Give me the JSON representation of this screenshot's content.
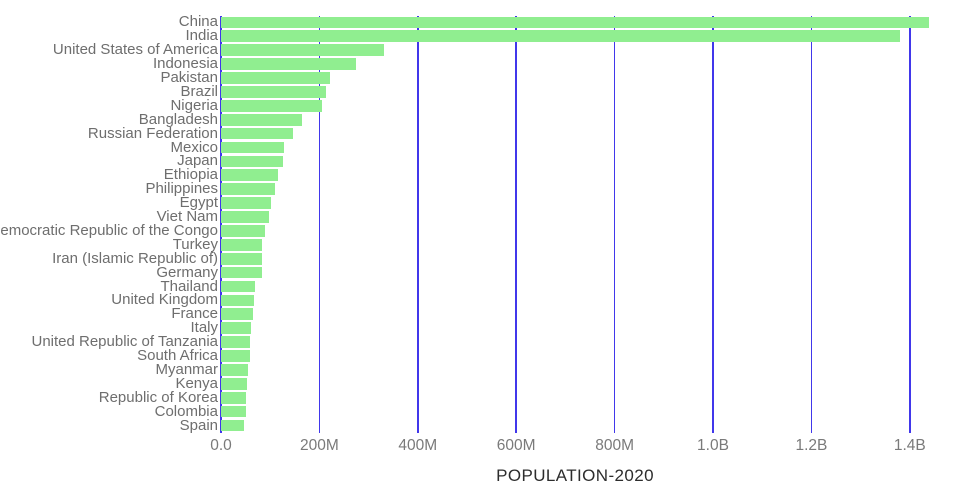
{
  "chart_data": {
    "type": "bar",
    "orientation": "horizontal",
    "title": "POPULATION-2020",
    "xlabel": "POPULATION-2020",
    "ylabel": "",
    "unit": "people",
    "grid": true,
    "legend": false,
    "xlim_millions": [
      0,
      1439.3
    ],
    "categories": [
      "China",
      "India",
      "United States of America",
      "Indonesia",
      "Pakistan",
      "Brazil",
      "Nigeria",
      "Bangladesh",
      "Russian Federation",
      "Mexico",
      "Japan",
      "Ethiopia",
      "Philippines",
      "Egypt",
      "Viet Nam",
      "Democratic Republic of the Congo",
      "Turkey",
      "Iran (Islamic Republic of)",
      "Germany",
      "Thailand",
      "United Kingdom",
      "France",
      "Italy",
      "United Republic of Tanzania",
      "South Africa",
      "Myanmar",
      "Kenya",
      "Republic of Korea",
      "Colombia",
      "Spain"
    ],
    "values_millions": [
      1439.3,
      1380.0,
      331.0,
      273.5,
      220.9,
      212.6,
      206.1,
      164.7,
      145.9,
      128.9,
      126.5,
      115.0,
      109.6,
      102.3,
      97.3,
      89.6,
      84.3,
      84.0,
      83.8,
      69.8,
      67.9,
      65.3,
      60.5,
      59.7,
      59.3,
      54.4,
      53.8,
      51.3,
      50.9,
      46.8
    ],
    "x_ticks": [
      {
        "value_millions": 0,
        "label": "0.0"
      },
      {
        "value_millions": 200,
        "label": "200M"
      },
      {
        "value_millions": 400,
        "label": "400M"
      },
      {
        "value_millions": 600,
        "label": "600M"
      },
      {
        "value_millions": 800,
        "label": "800M"
      },
      {
        "value_millions": 1000,
        "label": "1.0B"
      },
      {
        "value_millions": 1200,
        "label": "1.2B"
      },
      {
        "value_millions": 1400,
        "label": "1.4B"
      }
    ],
    "colors": {
      "bar": "#90EE90",
      "gridline": "#4137EB",
      "category_label": "#6E6E6E",
      "tick_label": "#7A7A7A",
      "title": "#2D2D2D",
      "background": "#FFFFFF"
    }
  }
}
